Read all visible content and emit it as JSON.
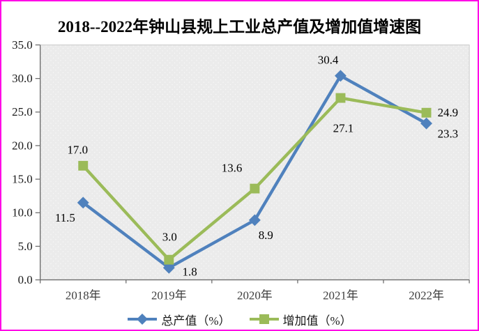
{
  "title": "2018--2022年钟山县规上工业总产值及增加值增速图",
  "colors": {
    "frame_border": "#FF00E6",
    "series_blue": "#4F81BD",
    "series_green": "#9BBB59",
    "plot_bg": "#EBEBEB",
    "plot_dot": "#F9F9F9",
    "plot_frame": "#C8C8C8",
    "axis": "#6E6E6E",
    "ytick_text": "#1A1A1A",
    "xlabel_text": "#3F3F3F",
    "label_text": "#000000"
  },
  "legend": [
    {
      "label": "总产值（%）",
      "marker": "diamond"
    },
    {
      "label": "增加值（%）",
      "marker": "square"
    }
  ],
  "chart_data": {
    "type": "line",
    "title": "2018--2022年钟山县规上工业总产值及增加值增速图",
    "categories": [
      "2018年",
      "2019年",
      "2020年",
      "2021年",
      "2022年"
    ],
    "series": [
      {
        "name": "总产值（%）",
        "color": "#4F81BD",
        "marker": "diamond",
        "values": [
          11.5,
          1.8,
          8.9,
          30.4,
          23.3
        ],
        "label_offsets": [
          [
            -26,
            22
          ],
          [
            30,
            6
          ],
          [
            16,
            22
          ],
          [
            -18,
            -23
          ],
          [
            31,
            15
          ]
        ]
      },
      {
        "name": "增加值（%）",
        "color": "#9BBB59",
        "marker": "square",
        "values": [
          17.0,
          3.0,
          13.6,
          27.1,
          24.9
        ],
        "label_offsets": [
          [
            -8,
            -23
          ],
          [
            1,
            -33
          ],
          [
            -33,
            -30
          ],
          [
            4,
            44
          ],
          [
            31,
            0
          ]
        ]
      }
    ],
    "xlabel": "",
    "ylabel": "",
    "ylim": [
      0,
      35
    ],
    "ytick_step": 5,
    "ytick_labels": [
      "0.0",
      "5.0",
      "10.0",
      "15.0",
      "20.0",
      "25.0",
      "30.0",
      "35.0"
    ],
    "grid": false,
    "legend_position": "bottom"
  }
}
